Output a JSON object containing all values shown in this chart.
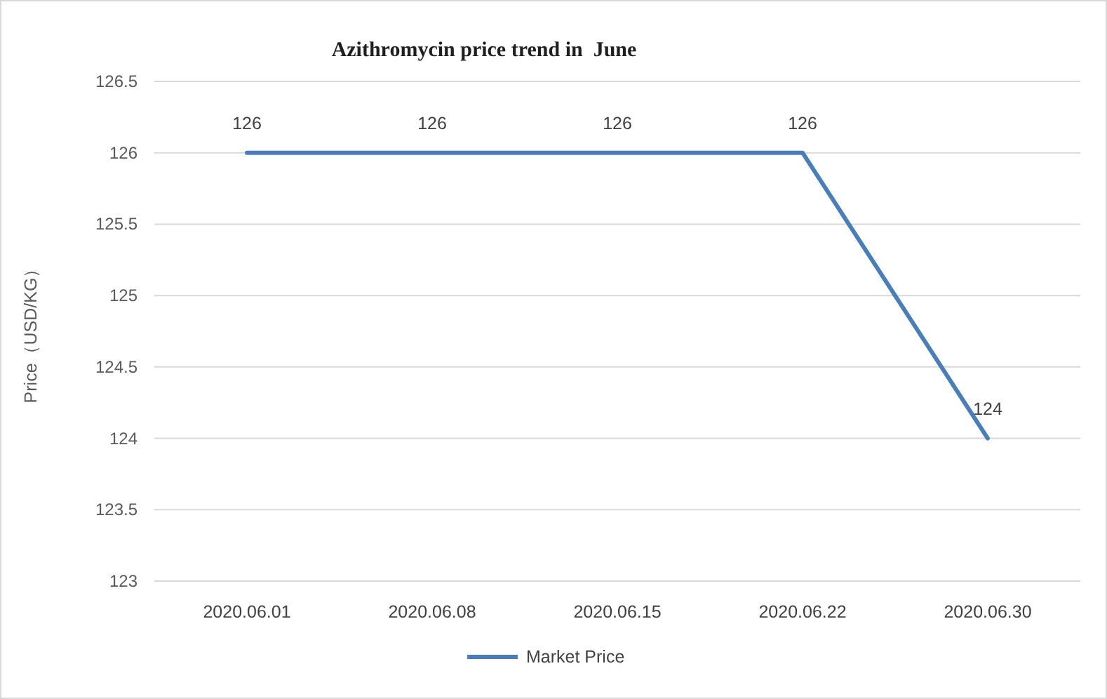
{
  "chart_data": {
    "type": "line",
    "title": "Azithromycin price trend in  June",
    "ylabel": "Price（USD/KG）",
    "categories": [
      "2020.06.01",
      "2020.06.08",
      "2020.06.15",
      "2020.06.22",
      "2020.06.30"
    ],
    "series": [
      {
        "name": "Market Price",
        "color": "#4a7ebb",
        "values": [
          126,
          126,
          126,
          126,
          124
        ]
      }
    ],
    "ylim": [
      123,
      126.5
    ],
    "yticks": [
      123,
      123.5,
      124,
      124.5,
      125,
      125.5,
      126,
      126.5
    ],
    "grid": "y",
    "legend": "bottom",
    "data_labels": true,
    "marker": "none",
    "line_style": "solid"
  }
}
